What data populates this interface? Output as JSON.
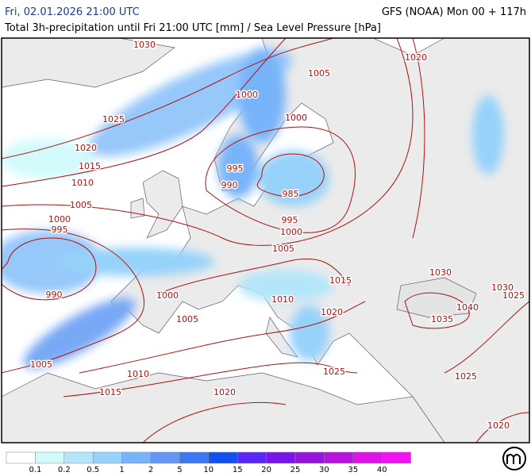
{
  "header": {
    "left": "Fri, 02.01.2026 21:00 UTC",
    "right": "GFS (NOAA) Mon 00 + 117h",
    "subtitle": "Total 3h-precipitation until Fri 21:00 UTC [mm] / Sea Level Pressure [hPa]"
  },
  "isobar_labels": [
    1030,
    1005,
    1020,
    1000,
    1025,
    1000,
    1020,
    1015,
    995,
    1010,
    990,
    985,
    1005,
    995,
    1000,
    995,
    1000,
    1005,
    990,
    1000,
    1015,
    1005,
    1010,
    1030,
    1020,
    1030,
    1025,
    1040,
    1035,
    1005,
    1010,
    1025,
    1015,
    1020,
    1025,
    1020
  ],
  "isobar_color": "#b01010",
  "legend": {
    "colors": [
      "#ffffff",
      "#d2fafa",
      "#b4e6fa",
      "#96d2fa",
      "#78b4fa",
      "#6496f5",
      "#3c78f0",
      "#1450f0",
      "#5a28f5",
      "#7814e6",
      "#9614dc",
      "#b414dc",
      "#dc14e6",
      "#f014f0"
    ],
    "labels": [
      0.1,
      0.2,
      0.5,
      1,
      2,
      5,
      10,
      15,
      20,
      25,
      30,
      35,
      40
    ]
  }
}
